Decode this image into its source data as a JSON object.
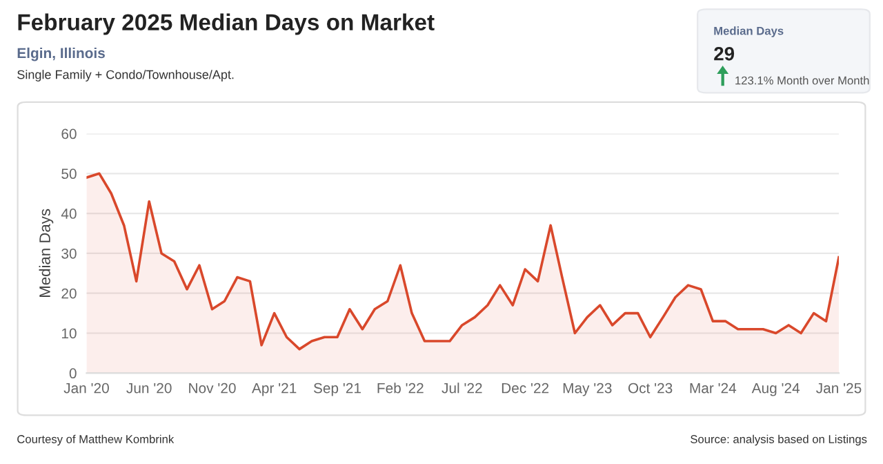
{
  "chart_data": {
    "type": "area",
    "title": "February 2025 Median Days on Market",
    "subtitle": "Elgin, Illinois",
    "ylabel": "Median Days",
    "annotations": [
      "Single Family + Condo/Townhouse/Apt.",
      "Median Days",
      "29",
      "123.1% Month over Month",
      "Courtesy of Matthew Kombrink",
      "Source: analysis based on Listings"
    ],
    "x": [
      "2020-01",
      "2020-02",
      "2020-03",
      "2020-04",
      "2020-05",
      "2020-06",
      "2020-07",
      "2020-08",
      "2020-09",
      "2020-10",
      "2020-11",
      "2020-12",
      "2021-01",
      "2021-02",
      "2021-03",
      "2021-04",
      "2021-05",
      "2021-06",
      "2021-07",
      "2021-08",
      "2021-09",
      "2021-10",
      "2021-11",
      "2021-12",
      "2022-01",
      "2022-02",
      "2022-03",
      "2022-04",
      "2022-05",
      "2022-06",
      "2022-07",
      "2022-08",
      "2022-09",
      "2022-10",
      "2022-11",
      "2022-12",
      "2023-01",
      "2023-02",
      "2023-03",
      "2023-04",
      "2023-05",
      "2023-06",
      "2023-07",
      "2023-08",
      "2023-09",
      "2023-10",
      "2023-11",
      "2023-12",
      "2024-01",
      "2024-02",
      "2024-03",
      "2024-04",
      "2024-05",
      "2024-06",
      "2024-07",
      "2024-08",
      "2024-09",
      "2024-10",
      "2024-11",
      "2024-12",
      "2025-01"
    ],
    "series": [
      {
        "color": "#d9482b",
        "values": [
          49,
          50,
          45,
          37,
          23,
          43,
          30,
          28,
          21,
          27,
          16,
          18,
          24,
          23,
          7,
          15,
          9,
          6,
          8,
          9,
          9,
          16,
          11,
          16,
          18,
          27,
          15,
          8,
          8,
          8,
          12,
          14,
          17,
          22,
          17,
          26,
          23,
          37,
          24,
          10,
          14,
          17,
          12,
          15,
          15,
          9,
          14,
          19,
          22,
          21,
          13,
          13,
          11,
          11,
          11,
          10,
          12,
          10,
          15,
          13,
          29
        ]
      }
    ],
    "xlim": [
      "2020-01",
      "2025-01"
    ],
    "xticks": [
      {
        "value": "2020-01",
        "label": "Jan '20"
      },
      {
        "value": "2020-06",
        "label": "Jun '20"
      },
      {
        "value": "2020-11",
        "label": "Nov '20"
      },
      {
        "value": "2021-04",
        "label": "Apr '21"
      },
      {
        "value": "2021-09",
        "label": "Sep '21"
      },
      {
        "value": "2022-02",
        "label": "Feb '22"
      },
      {
        "value": "2022-07",
        "label": "Jul '22"
      },
      {
        "value": "2022-12",
        "label": "Dec '22"
      },
      {
        "value": "2023-05",
        "label": "May '23"
      },
      {
        "value": "2023-10",
        "label": "Oct '23"
      },
      {
        "value": "2024-03",
        "label": "Mar '24"
      },
      {
        "value": "2024-08",
        "label": "Aug '24"
      },
      {
        "value": "2025-01",
        "label": "Jan '25"
      }
    ],
    "ylim": [
      0,
      60
    ],
    "yticks": [
      0,
      10,
      20,
      30,
      40,
      50,
      60
    ],
    "grid": "y",
    "legend": false,
    "marker": "none",
    "line_style": "solid"
  }
}
